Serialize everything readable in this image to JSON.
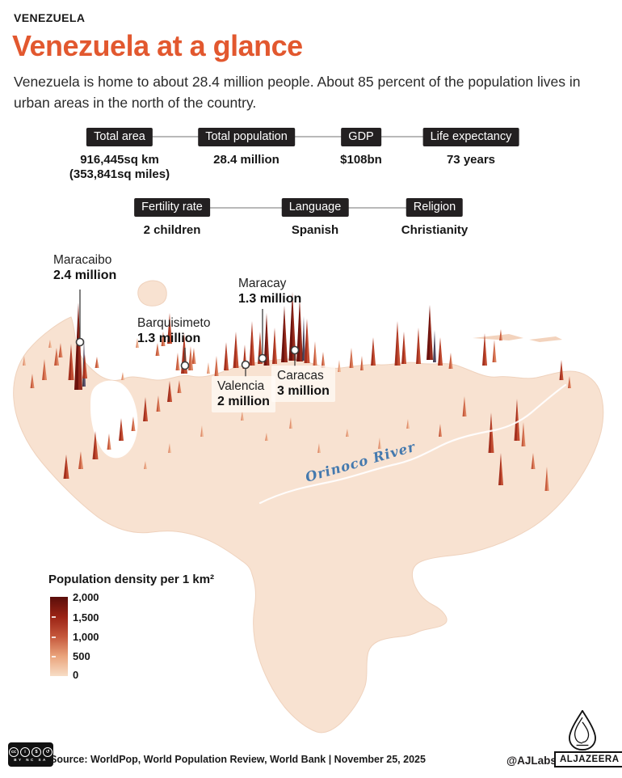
{
  "header": {
    "kicker": "VENEZUELA",
    "title": "Venezuela at a glance",
    "intro": "Venezuela is home to about 28.4 million people. About 85 percent of the population lives in urban areas in the north of the country."
  },
  "stats_primary": [
    {
      "label": "Total area",
      "value": "916,445sq km",
      "value_secondary": "(353,841sq miles)"
    },
    {
      "label": "Total population",
      "value": "28.4 million",
      "value_secondary": ""
    },
    {
      "label": "GDP",
      "value": "$108bn",
      "value_secondary": ""
    },
    {
      "label": "Life expectancy",
      "value": "73 years",
      "value_secondary": ""
    }
  ],
  "stats_secondary": [
    {
      "label": "Fertility rate",
      "value": "2 children"
    },
    {
      "label": "Language",
      "value": "Spanish"
    },
    {
      "label": "Religion",
      "value": "Christianity"
    }
  ],
  "map": {
    "river_label": "Orinoco River",
    "cities": [
      {
        "name": "Maracaibo",
        "population": "2.4 million"
      },
      {
        "name": "Barquisimeto",
        "population": "1.3 million"
      },
      {
        "name": "Maracay",
        "population": "1.3 million"
      },
      {
        "name": "Valencia",
        "population": "2 million"
      },
      {
        "name": "Caracas",
        "population": "3 million"
      }
    ]
  },
  "legend": {
    "title": "Population density per 1 km²",
    "ticks": [
      "2,000",
      "1,500",
      "1,000",
      "500",
      "0"
    ],
    "gradient": [
      "#5a0e0a",
      "#9b2315",
      "#c5573b",
      "#eaa47c",
      "#f7ddc6"
    ]
  },
  "footer": {
    "source": "Source: WorldPop, World Population Review, World Bank | November 25, 2025",
    "credit": "@AJLabs",
    "brand": "ALJAZEERA",
    "license": "BY NC SA"
  },
  "colors": {
    "accent": "#e2582f",
    "badge": "#232021",
    "map_base": "#f8e2d1",
    "river_label": "#4479ae"
  }
}
